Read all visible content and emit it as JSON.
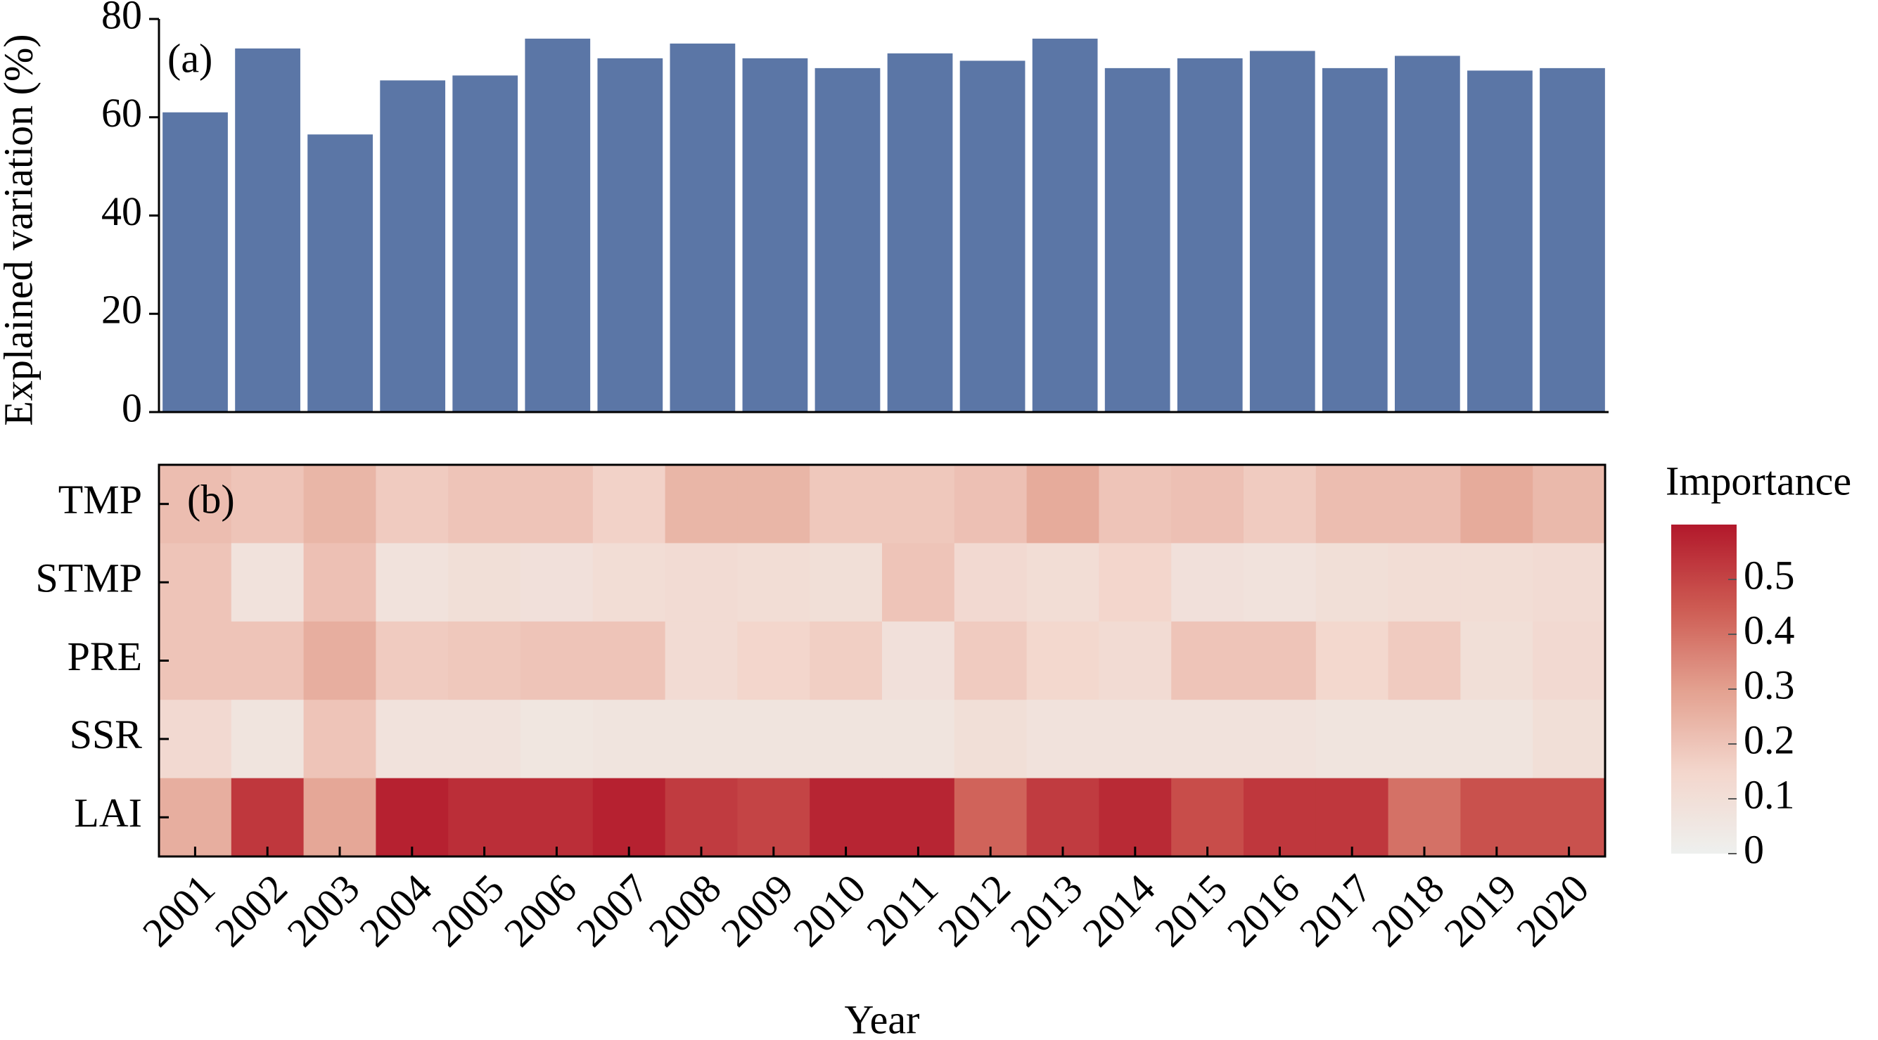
{
  "chart_data": [
    {
      "type": "bar",
      "label": "(a)",
      "ylabel": "Explained variation (%)",
      "values": [
        61,
        74,
        56.5,
        67.5,
        68.5,
        76,
        72,
        75,
        72,
        70,
        73,
        71.5,
        76,
        70,
        72,
        73.5,
        70,
        72.5,
        69.5,
        70
      ],
      "color": "#5b76a6",
      "ylim": [
        0,
        80
      ],
      "yticks": [
        0,
        20,
        40,
        60,
        80
      ]
    },
    {
      "type": "heatmap",
      "label": "(b)",
      "xlabel": "Year",
      "x": [
        "2001",
        "2002",
        "2003",
        "2004",
        "2005",
        "2006",
        "2007",
        "2008",
        "2009",
        "2010",
        "2011",
        "2012",
        "2013",
        "2014",
        "2015",
        "2016",
        "2017",
        "2018",
        "2019",
        "2020"
      ],
      "rows": [
        "TMP",
        "STMP",
        "PRE",
        "SSR",
        "LAI"
      ],
      "values": [
        [
          0.22,
          0.2,
          0.24,
          0.18,
          0.2,
          0.2,
          0.16,
          0.24,
          0.24,
          0.19,
          0.19,
          0.21,
          0.27,
          0.2,
          0.21,
          0.18,
          0.22,
          0.22,
          0.27,
          0.23
        ],
        [
          0.2,
          0.08,
          0.21,
          0.08,
          0.1,
          0.09,
          0.11,
          0.12,
          0.11,
          0.1,
          0.2,
          0.13,
          0.11,
          0.15,
          0.09,
          0.08,
          0.1,
          0.11,
          0.11,
          0.12
        ],
        [
          0.2,
          0.2,
          0.26,
          0.18,
          0.19,
          0.2,
          0.2,
          0.12,
          0.15,
          0.17,
          0.09,
          0.18,
          0.14,
          0.12,
          0.2,
          0.2,
          0.14,
          0.18,
          0.1,
          0.13
        ],
        [
          0.13,
          0.07,
          0.2,
          0.08,
          0.08,
          0.06,
          0.07,
          0.07,
          0.07,
          0.07,
          0.07,
          0.1,
          0.08,
          0.08,
          0.08,
          0.08,
          0.07,
          0.07,
          0.07,
          0.1
        ],
        [
          0.26,
          0.53,
          0.28,
          0.58,
          0.55,
          0.55,
          0.58,
          0.52,
          0.5,
          0.57,
          0.57,
          0.43,
          0.52,
          0.56,
          0.48,
          0.53,
          0.53,
          0.4,
          0.47,
          0.47
        ]
      ],
      "colorbar_title": "Importance",
      "zlim": [
        0,
        0.6
      ],
      "zticks": [
        0,
        0.1,
        0.2,
        0.3,
        0.4,
        0.5
      ],
      "colorscale": [
        "#eef0ee",
        "#f3d6cc",
        "#e3a08f",
        "#cd5a52",
        "#b2182b"
      ]
    }
  ]
}
